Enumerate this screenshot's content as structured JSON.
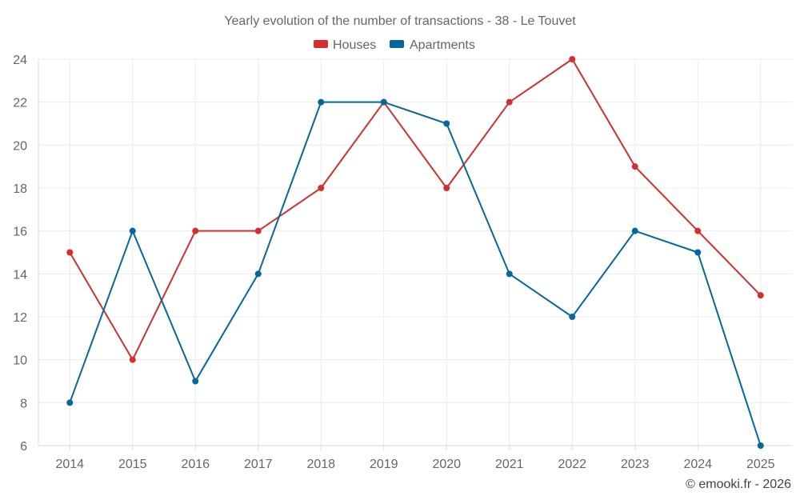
{
  "chart_data": {
    "type": "line",
    "title": "Yearly evolution of the number of transactions - 38 - Le Touvet",
    "categories": [
      "2014",
      "2015",
      "2016",
      "2017",
      "2018",
      "2019",
      "2020",
      "2021",
      "2022",
      "2023",
      "2024",
      "2025"
    ],
    "series": [
      {
        "name": "Houses",
        "color": "#d32f2f",
        "values": [
          15,
          10,
          16,
          16,
          18,
          22,
          18,
          22,
          24,
          19,
          16,
          13
        ]
      },
      {
        "name": "Apartments",
        "color": "#05679b",
        "values": [
          8,
          16,
          9,
          14,
          22,
          22,
          21,
          14,
          12,
          16,
          15,
          6
        ]
      }
    ],
    "ylim": [
      6,
      24
    ],
    "yticks": [
      6,
      8,
      10,
      12,
      14,
      16,
      18,
      20,
      22,
      24
    ],
    "grid": true,
    "legend": "top-center",
    "credit": "© emooki.fr - 2026"
  }
}
